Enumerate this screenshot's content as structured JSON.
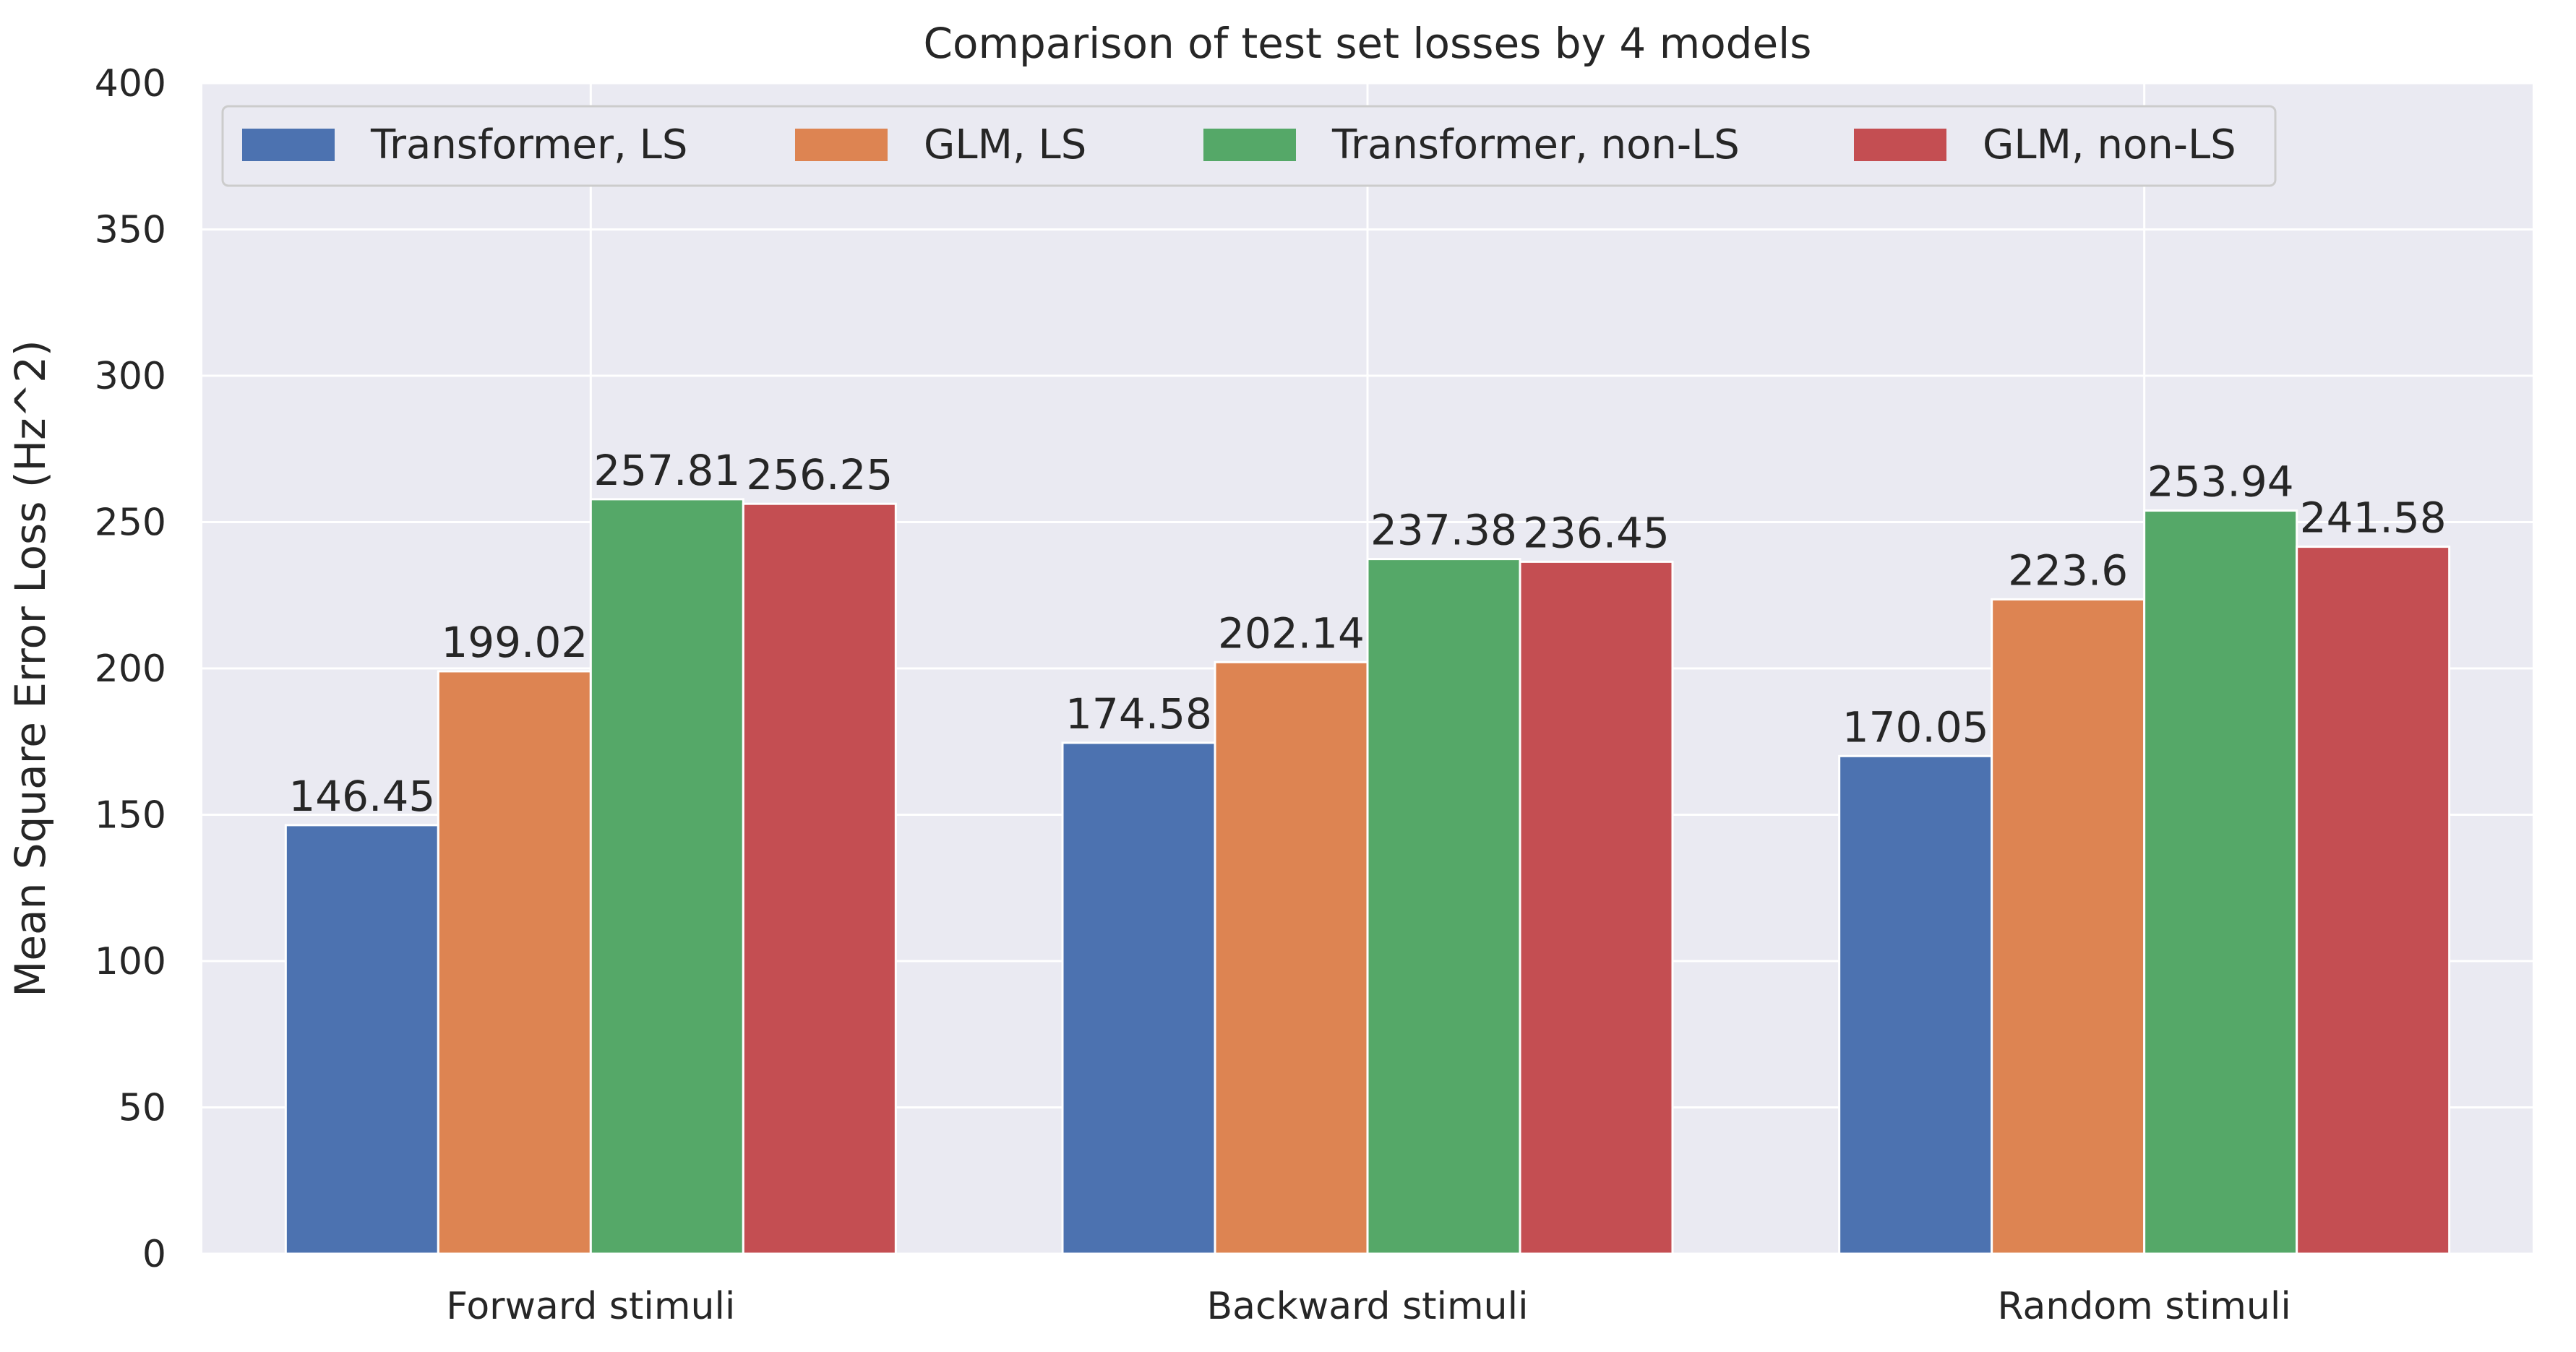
{
  "chart_data": {
    "type": "bar",
    "title": "Comparison of test set losses by 4 models",
    "xlabel": "",
    "ylabel": "Mean Square Error Loss (Hz^2)",
    "categories": [
      "Forward stimuli",
      "Backward stimuli",
      "Random stimuli"
    ],
    "ylim": [
      0,
      400
    ],
    "yticks": [
      0,
      50,
      100,
      150,
      200,
      250,
      300,
      350,
      400
    ],
    "grid": true,
    "legend_position": "top-left",
    "legend_columns": 4,
    "series": [
      {
        "name": "Transformer, LS",
        "color": "#4c72b0",
        "values": [
          146.45,
          174.58,
          170.05
        ],
        "labels": [
          "146.45",
          "174.58",
          "170.05"
        ]
      },
      {
        "name": "GLM, LS",
        "color": "#dd8452",
        "values": [
          199.02,
          202.14,
          223.6
        ],
        "labels": [
          "199.02",
          "202.14",
          "223.6"
        ]
      },
      {
        "name": "Transformer, non-LS",
        "color": "#55a868",
        "values": [
          257.81,
          237.38,
          253.94
        ],
        "labels": [
          "257.81",
          "237.38",
          "253.94"
        ]
      },
      {
        "name": "GLM, non-LS",
        "color": "#c44e52",
        "values": [
          256.25,
          236.45,
          241.58
        ],
        "labels": [
          "256.25",
          "236.45",
          "241.58"
        ]
      }
    ],
    "plot_background": "#eaeaf2",
    "grid_color": "#ffffff"
  }
}
